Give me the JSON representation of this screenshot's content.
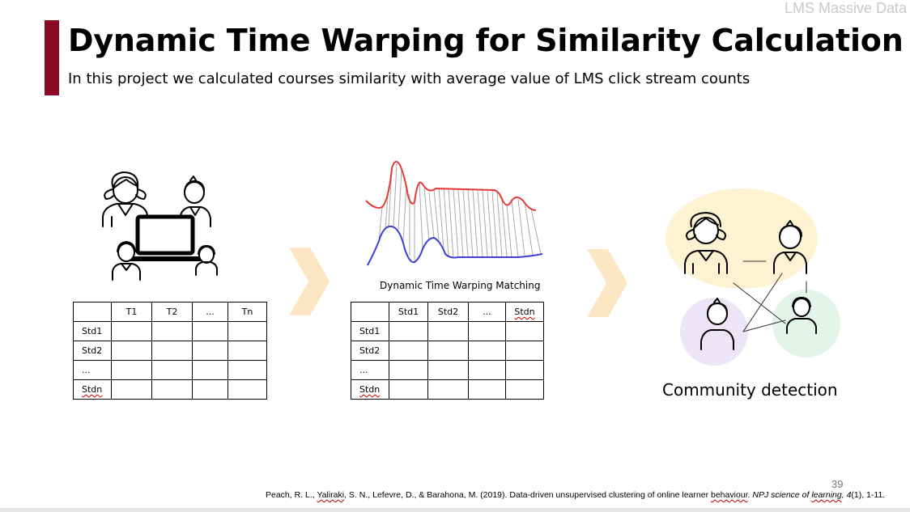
{
  "corner_label": "LMS Massive Data",
  "title": "Dynamic Time Warping for Similarity Calculation",
  "subtitle": "In this project we calculated courses similarity with average value of LMS click stream counts",
  "table1": {
    "header": [
      "",
      "T1",
      "T2",
      "...",
      "Tn"
    ],
    "row_labels": [
      "Std1",
      "Std2",
      "...",
      "Stdn"
    ]
  },
  "table2": {
    "header": [
      "",
      "Std1",
      "Std2",
      "...",
      "Stdn"
    ],
    "row_labels": [
      "Std1",
      "Std2",
      "...",
      "Stdn"
    ]
  },
  "dtw_caption": "Dynamic Time Warping Matching",
  "community_caption": "Community detection",
  "page_number": "39",
  "citation": {
    "authors_a": "Peach, R. L., ",
    "authors_b": "Yaliraki",
    "authors_c": ", S. N., Lefevre, D., & Barahona, M. (2019). Data-driven unsupervised clustering of online learner ",
    "authors_d": "behaviour",
    "journal_a": "NPJ science of ",
    "journal_b": "learning",
    "volume": "4",
    "rest": "(1), 1-11."
  },
  "colors": {
    "accent": "#8b0a23",
    "arrow": "#fde6c4",
    "red_series": "#e53935",
    "blue_series": "#3f3fd8",
    "cluster_yellow": "#fdf3d2",
    "cluster_purple": "#ebe5f5",
    "cluster_green": "#e3f4ea"
  },
  "icons": [
    "students-with-laptop-icon",
    "dtw-curves-icon",
    "community-people-icon",
    "chevron-right-icon"
  ]
}
